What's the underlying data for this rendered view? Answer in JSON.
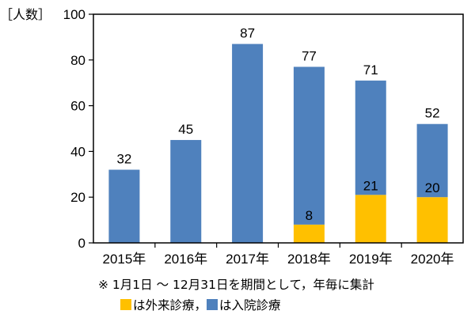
{
  "chart_data": {
    "type": "bar",
    "stacked": true,
    "unit_label": "［人数］",
    "categories": [
      "2015年",
      "2016年",
      "2017年",
      "2018年",
      "2019年",
      "2020年"
    ],
    "series": [
      {
        "name": "外来診療",
        "color": "#FFC000",
        "values": [
          0,
          0,
          0,
          8,
          21,
          20
        ],
        "labels": [
          "",
          "",
          "",
          "8",
          "21",
          "20"
        ]
      },
      {
        "name": "入院診療",
        "color": "#4F81BD",
        "values": [
          32,
          45,
          87,
          69,
          50,
          32
        ]
      }
    ],
    "totals": [
      32,
      45,
      87,
      77,
      71,
      52
    ],
    "ylim": [
      0,
      100
    ],
    "yticks": [
      0,
      20,
      40,
      60,
      80,
      100
    ],
    "grid": false,
    "legend_position": "bottom"
  },
  "note": "※ 1月1日 ～ 12月31日を期間として，年毎に集計",
  "legend": {
    "outpatient_label": "は外来診療，",
    "inpatient_label": "は入院診療"
  }
}
